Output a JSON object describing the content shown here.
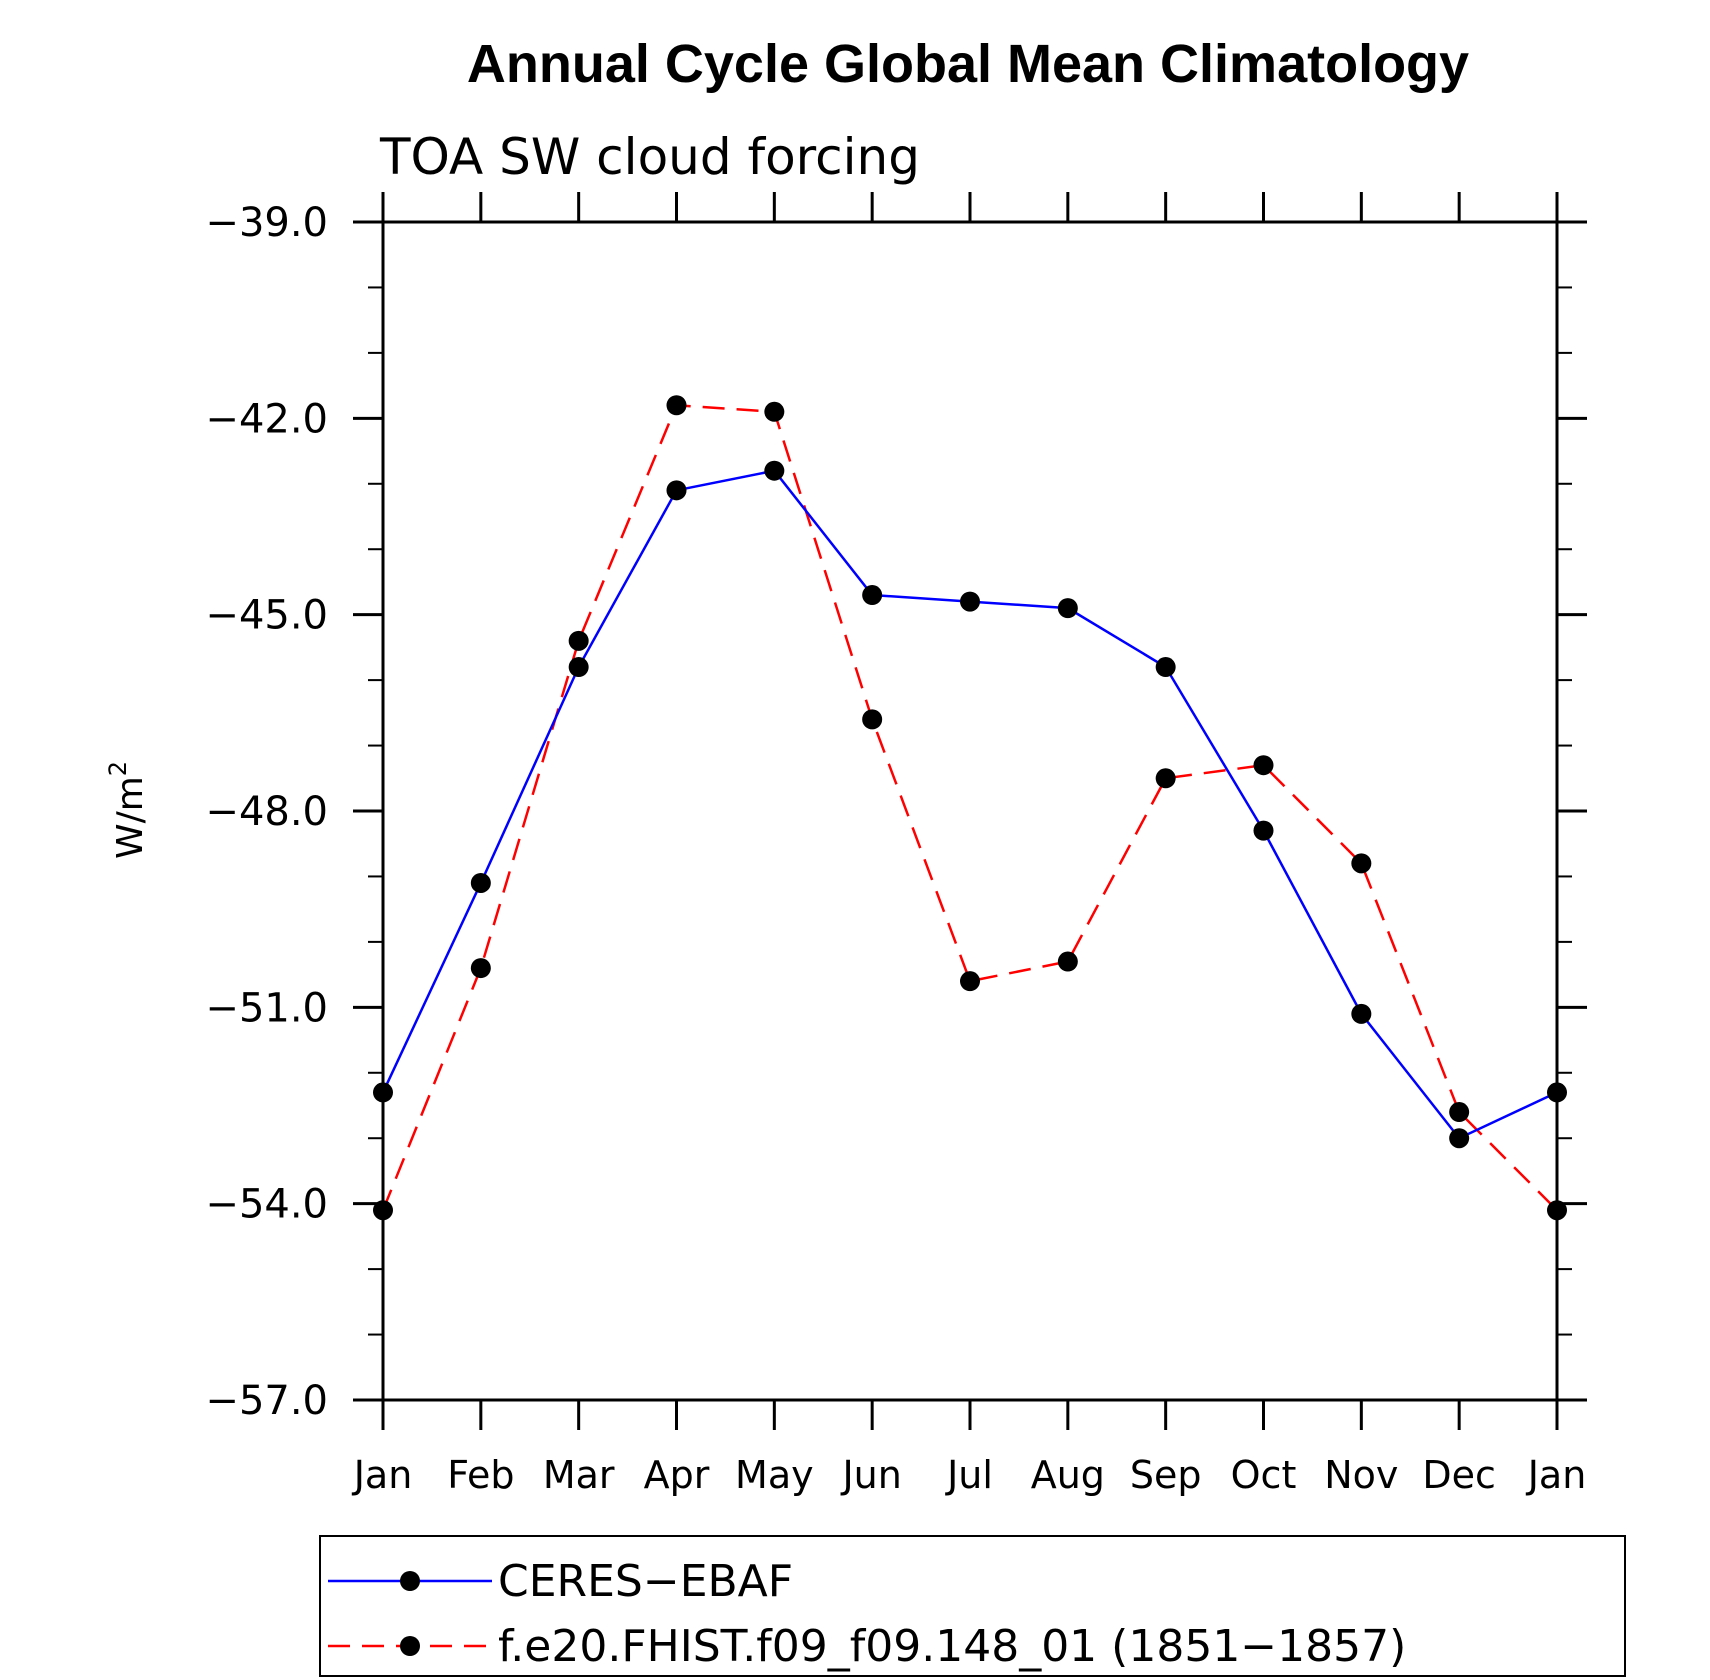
{
  "chart_data": {
    "type": "line",
    "title": "Annual Cycle Global Mean Climatology",
    "subtitle": "TOA SW cloud forcing",
    "ylabel": "W/m",
    "ylabel_sup": "2",
    "xlabel": "",
    "categories": [
      "Jan",
      "Feb",
      "Mar",
      "Apr",
      "May",
      "Jun",
      "Jul",
      "Aug",
      "Sep",
      "Oct",
      "Nov",
      "Dec",
      "Jan"
    ],
    "ylim": [
      -57.0,
      -39.0
    ],
    "yticks": [
      -39.0,
      -42.0,
      -45.0,
      -48.0,
      -51.0,
      -54.0,
      -57.0
    ],
    "ytick_labels": [
      "−39.0",
      "−42.0",
      "−45.0",
      "−48.0",
      "−51.0",
      "−54.0",
      "−57.0"
    ],
    "grid": false,
    "legend_position": "bottom",
    "series": [
      {
        "name": "CERES−EBAF",
        "color": "#0000ff",
        "dash": "solid",
        "marker": "filled-circle",
        "values": [
          -52.3,
          -49.1,
          -45.8,
          -43.1,
          -42.8,
          -44.7,
          -44.8,
          -44.9,
          -45.8,
          -48.3,
          -51.1,
          -53.0,
          -52.3
        ]
      },
      {
        "name": "f.e20.FHIST.f09_f09.148_01 (1851−1857)",
        "color": "#ff0000",
        "dash": "dashed",
        "marker": "filled-circle",
        "values": [
          -54.1,
          -50.4,
          -45.4,
          -41.8,
          -41.9,
          -46.6,
          -50.6,
          -50.3,
          -47.5,
          -47.3,
          -48.8,
          -52.6,
          -54.1
        ]
      }
    ]
  }
}
